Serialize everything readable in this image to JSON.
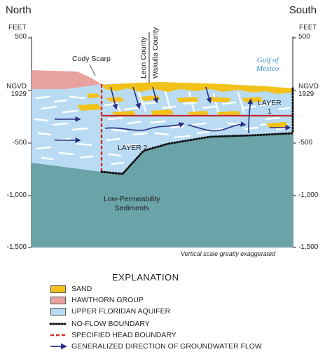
{
  "header": {
    "left": "North",
    "right": "South"
  },
  "axis": {
    "unit_left": "FEET",
    "unit_right": "FEET",
    "ticks_left": [
      "500",
      "NGVD\n1929",
      "-500",
      "-1,000",
      "-1,500"
    ],
    "ticks_right": [
      "500",
      "NGVD\n1929",
      "-500",
      "-1,000",
      "-1,500"
    ]
  },
  "labels": {
    "cody_scarp": "Cody Scarp",
    "leon_county": "Leon County",
    "wakulla_county": "Wakulla County",
    "gulf": "Gulf of\nMexico",
    "layer1": "LAYER\n1",
    "layer2": "LAYER 2",
    "low_perm": "Low-Permeability\nSediments",
    "scale_note": "Vertical scale greatly exaggerated"
  },
  "colors": {
    "sand": "#f2c21a",
    "hawthorn": "#e8a3a0",
    "aquifer": "#b9dcf4",
    "sediments": "#6aa3a8",
    "flow_arrow": "#2b2e83",
    "head_boundary": "#d9281f"
  },
  "explanation": {
    "title": "EXPLANATION",
    "items": [
      {
        "label": "SAND",
        "symbol": "sand-swatch"
      },
      {
        "label": "HAWTHORN GROUP",
        "symbol": "hawthorn-swatch"
      },
      {
        "label": "UPPER FLORIDAN AQUIFER",
        "symbol": "aquifer-swatch"
      },
      {
        "label": "NO-FLOW BOUNDARY",
        "symbol": "dotted-line"
      },
      {
        "label": "SPECIFIED HEAD BOUNDARY",
        "symbol": "red-dashed-line"
      },
      {
        "label": "GENERALIZED DIRECTION OF GROUNDWATER FLOW",
        "symbol": "arrow"
      }
    ]
  }
}
